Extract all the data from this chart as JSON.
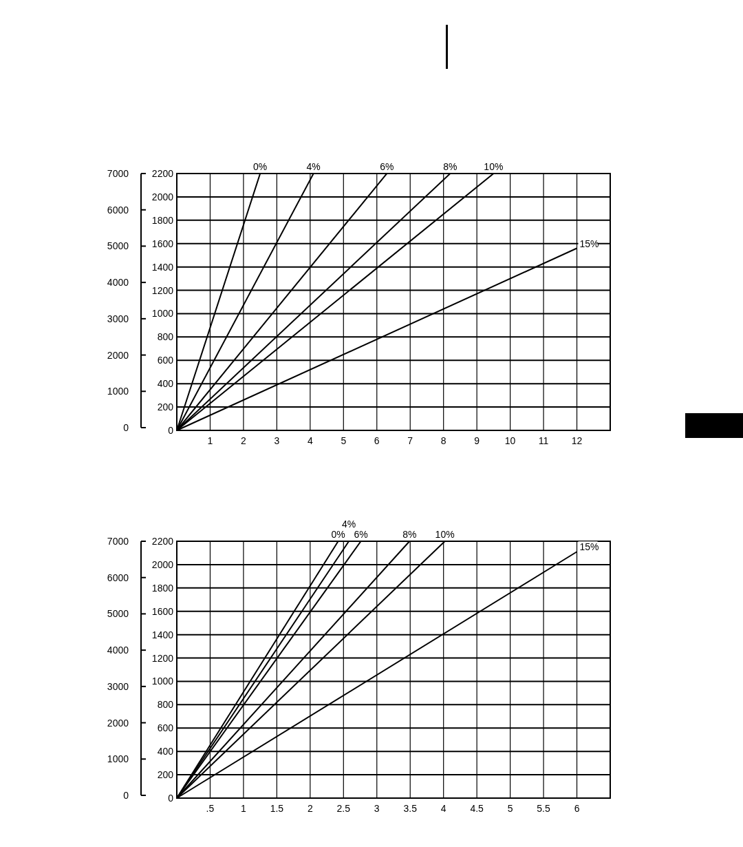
{
  "chart_data": [
    {
      "type": "line",
      "xlim": [
        0,
        13
      ],
      "xticks": [
        1,
        2,
        3,
        4,
        5,
        6,
        7,
        8,
        9,
        10,
        11,
        12
      ],
      "ylim": [
        0,
        2200
      ],
      "yticks": [
        0,
        200,
        400,
        600,
        800,
        1000,
        1200,
        1400,
        1600,
        1800,
        2000,
        2200
      ],
      "y2lim": [
        0,
        7000
      ],
      "y2ticks": [
        0,
        1000,
        2000,
        3000,
        4000,
        5000,
        6000,
        7000
      ],
      "grid": true,
      "series": [
        {
          "name": "0%",
          "color": "#000000",
          "x": [
            0,
            2.5
          ],
          "values": [
            0,
            2200
          ]
        },
        {
          "name": "4%",
          "color": "#000000",
          "x": [
            0,
            4.1
          ],
          "values": [
            0,
            2200
          ]
        },
        {
          "name": "6%",
          "color": "#000000",
          "x": [
            0,
            6.3
          ],
          "values": [
            0,
            2200
          ]
        },
        {
          "name": "8%",
          "color": "#000000",
          "x": [
            0,
            8.2
          ],
          "values": [
            0,
            2200
          ]
        },
        {
          "name": "10%",
          "color": "#000000",
          "x": [
            0,
            9.5
          ],
          "values": [
            0,
            2200
          ]
        },
        {
          "name": "15%",
          "color": "#000000",
          "x": [
            0,
            12
          ],
          "values": [
            0,
            1560
          ]
        }
      ]
    },
    {
      "type": "line",
      "xlim": [
        0,
        6.5
      ],
      "xticks": [
        {
          "value": 0.5,
          "label": ".5"
        },
        1,
        1.5,
        2,
        2.5,
        3,
        3.5,
        4,
        4.5,
        5,
        5.5,
        6
      ],
      "ylim": [
        0,
        2200
      ],
      "yticks": [
        0,
        200,
        400,
        600,
        800,
        1000,
        1200,
        1400,
        1600,
        1800,
        2000,
        2200
      ],
      "y2lim": [
        0,
        7000
      ],
      "y2ticks": [
        0,
        1000,
        2000,
        3000,
        4000,
        5000,
        6000,
        7000
      ],
      "grid": true,
      "series": [
        {
          "name": "0%",
          "color": "#000000",
          "x": [
            0,
            2.42
          ],
          "values": [
            0,
            2200
          ]
        },
        {
          "name": "4%",
          "color": "#000000",
          "x": [
            0,
            2.58
          ],
          "values": [
            0,
            2200
          ]
        },
        {
          "name": "6%",
          "color": "#000000",
          "x": [
            0,
            2.76
          ],
          "values": [
            0,
            2200
          ]
        },
        {
          "name": "8%",
          "color": "#000000",
          "x": [
            0,
            3.49
          ],
          "values": [
            0,
            2200
          ]
        },
        {
          "name": "10%",
          "color": "#000000",
          "x": [
            0,
            4.02
          ],
          "values": [
            0,
            2200
          ]
        },
        {
          "name": "15%",
          "color": "#000000",
          "x": [
            0,
            6
          ],
          "values": [
            0,
            2110
          ]
        }
      ]
    }
  ]
}
